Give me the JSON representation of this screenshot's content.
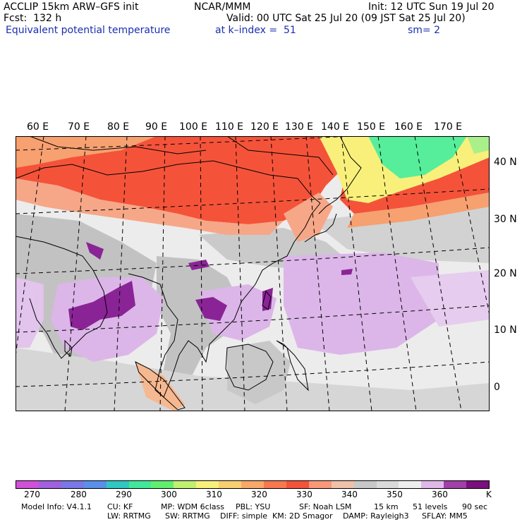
{
  "header": {
    "model": "ACCLIP 15km ARW–GFS init",
    "org": "NCAR/MMM",
    "init": "Init: 12 UTC Sun 19 Jul 20",
    "fcst": "Fcst:  132 h",
    "valid": "Valid: 00 UTC Sat 25 Jul 20 (09 JST Sat 25 Jul 20)",
    "field": "Equivalent potential temperature",
    "level": "at k–index =  51",
    "smooth": "sm= 2"
  },
  "map": {
    "lon_labels": [
      "60 E",
      "70 E",
      "80 E",
      "90 E",
      "100 E",
      "110 E",
      "120 E",
      "130 E",
      "140 E",
      "150 E",
      "160 E",
      "170 E"
    ],
    "lat_labels": [
      "40 N",
      "30 N",
      "20 N",
      "10 N",
      "0"
    ],
    "colors": {
      "ocean": "#ececec",
      "land_grey": "#c2c2c2",
      "hot_red": "#f4533a",
      "orange": "#f7a070",
      "salmon": "#f8b89a",
      "yellow": "#f8f07a",
      "green": "#56ee9a",
      "light_purple": "#dcb6e8",
      "dark_purple": "#8a2496",
      "coast": "#000000"
    }
  },
  "colorbar": {
    "colors": [
      "#d050d8",
      "#a060e0",
      "#7878e8",
      "#5a90ec",
      "#30c8c0",
      "#40e89a",
      "#60f070",
      "#c0f070",
      "#f8f07a",
      "#f8d070",
      "#f8a868",
      "#f87850",
      "#f4533a",
      "#f89878",
      "#f0c0a8",
      "#c8c8c8",
      "#dadada",
      "#eeeeee",
      "#e0b8e8",
      "#a040a8",
      "#7a107e"
    ],
    "labels": [
      "270",
      "280",
      "290",
      "300",
      "310",
      "320",
      "330",
      "340",
      "350",
      "360"
    ],
    "unit": "K"
  },
  "footer": {
    "line1": [
      "Model Info: V4.1.1",
      "CU: KF",
      "MP: WDM 6class",
      "PBL: YSU",
      "SF: Noah LSM",
      "15 km",
      "51 levels",
      "90 sec"
    ],
    "line2": [
      "LW: RRTMG",
      "SW: RRTMG",
      "DIFF: simple",
      "KM: 2D Smagor",
      "DAMP: Rayleigh3",
      "SFLAY: MM5"
    ]
  }
}
